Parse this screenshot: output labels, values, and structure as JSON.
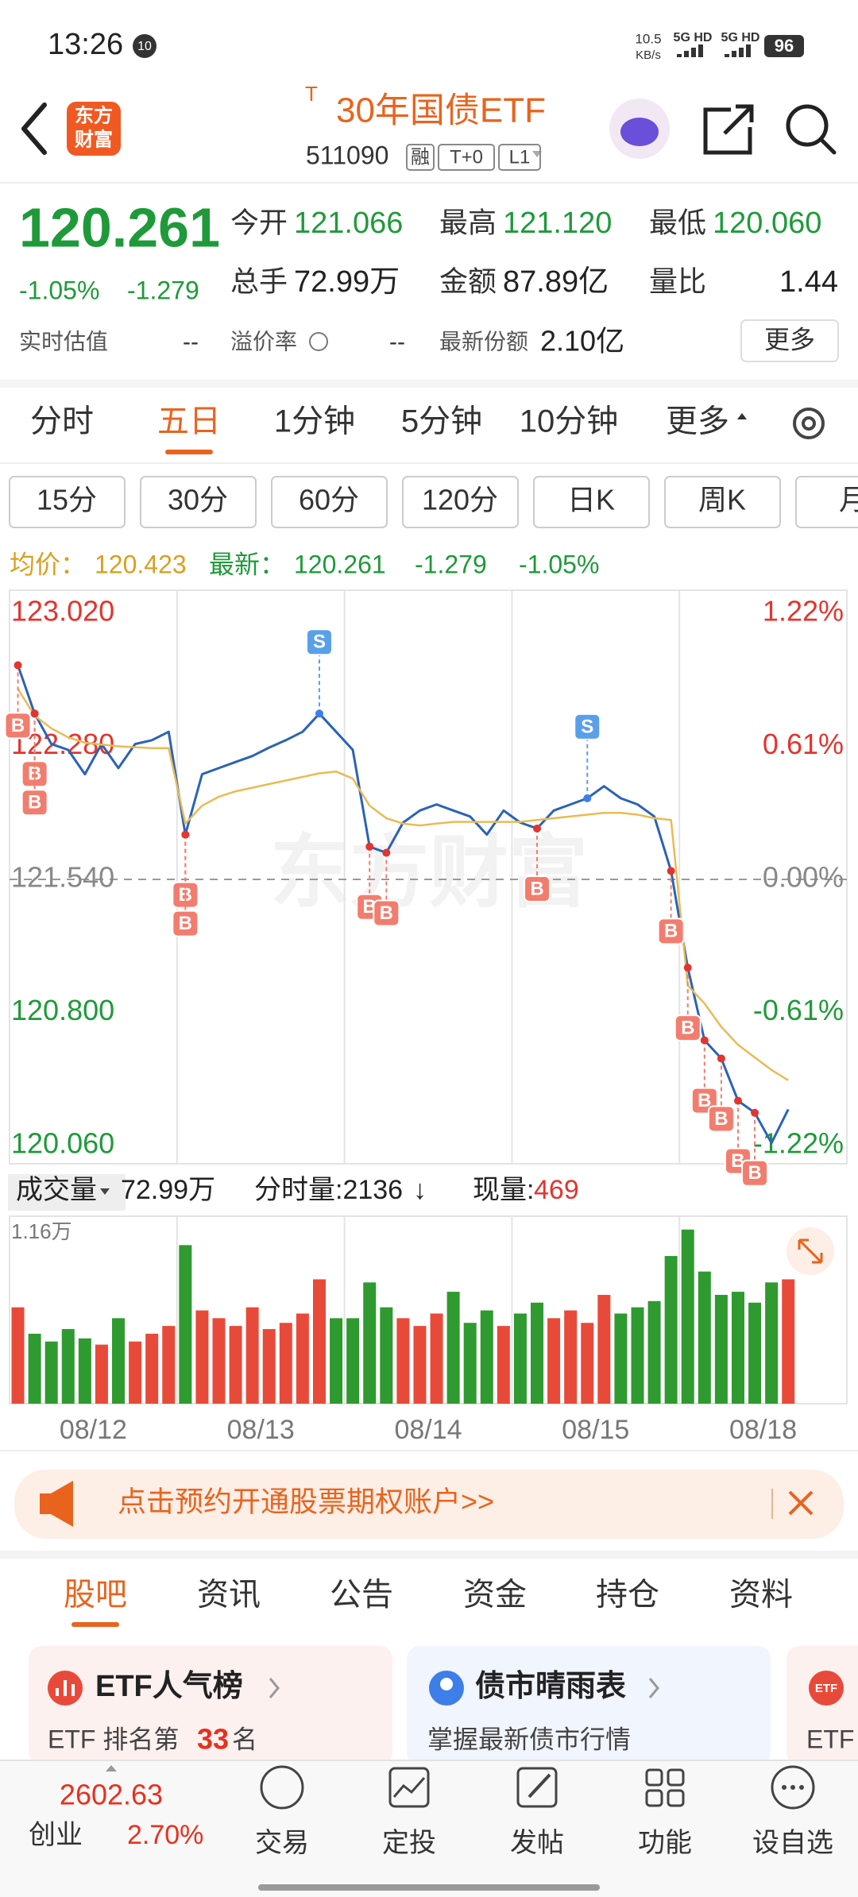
{
  "status_bar": {
    "time": "13:26",
    "badge": "10",
    "net_speed": "10.5",
    "net_unit": "KB/s",
    "signal1": "5G HD",
    "signal2": "5G HD",
    "battery": "96"
  },
  "header": {
    "logo_line1": "东方",
    "logo_line2": "财富",
    "title_mark": "T",
    "title": "30年国债ETF",
    "code": "511090",
    "tags": [
      "融",
      "T+0",
      "L1"
    ]
  },
  "quote": {
    "price": "120.261",
    "change_pct": "-1.05%",
    "change": "-1.279",
    "fields": [
      {
        "label": "今开",
        "value": "121.066"
      },
      {
        "label": "最高",
        "value": "121.120"
      },
      {
        "label": "最低",
        "value": "120.060"
      },
      {
        "label": "总手",
        "value": "72.99万"
      },
      {
        "label": "金额",
        "value": "87.89亿"
      },
      {
        "label": "量比",
        "value": "1.44"
      },
      {
        "label": "实时估值",
        "value": "--"
      },
      {
        "label": "溢价率",
        "value": "--"
      },
      {
        "label": "最新份额",
        "value": "2.10亿"
      }
    ],
    "more": "更多"
  },
  "tabs": {
    "items": [
      "分时",
      "五日",
      "1分钟",
      "5分钟",
      "10分钟",
      "更多"
    ],
    "active": 1
  },
  "periods": [
    "15分",
    "30分",
    "60分",
    "120分",
    "日K",
    "周K",
    "月"
  ],
  "legend": {
    "avg_label": "均价：",
    "avg": "120.423",
    "last_label": "最新：",
    "last": "120.261",
    "change": "-1.279",
    "change_pct": "-1.05%"
  },
  "chart_data": [
    {
      "type": "line",
      "watermark": "东方财富",
      "xlim": [
        0,
        50
      ],
      "ylim": [
        120.06,
        123.02
      ],
      "yticks": [
        {
          "value": 120.06,
          "label": "120.060"
        },
        {
          "value": 120.8,
          "label": "120.800"
        },
        {
          "value": 121.54,
          "label": "121.540"
        },
        {
          "value": 122.28,
          "label": "122.280"
        },
        {
          "value": 123.02,
          "label": "123.020"
        }
      ],
      "y2lim": [
        -1.22,
        1.22
      ],
      "y2ticks": [
        {
          "value": -1.22,
          "label": "-1.22%"
        },
        {
          "value": -0.61,
          "label": "-0.61%"
        },
        {
          "value": 0,
          "label": "0.00%"
        },
        {
          "value": 0.61,
          "label": "0.61%"
        },
        {
          "value": 1.22,
          "label": "1.22%"
        }
      ],
      "series": [
        {
          "color": "#2b63b5",
          "values": [
            122.731,
            122.462,
            122.293,
            122.26,
            122.125,
            122.293,
            122.159,
            122.293,
            122.314,
            122.361,
            121.789,
            122.125,
            122.159,
            122.193,
            122.226,
            122.273,
            122.314,
            122.361,
            122.462,
            122.361,
            122.26,
            121.722,
            121.688,
            121.856,
            121.923,
            121.957,
            121.923,
            121.89,
            121.789,
            121.923,
            121.856,
            121.823,
            121.923,
            121.957,
            121.991,
            122.058,
            121.991,
            121.957,
            121.89,
            121.587,
            121.049,
            120.645,
            120.544,
            120.309,
            120.242,
            120.074,
            120.261,
            null,
            null,
            null
          ]
        },
        {
          "color": "#e9bb55",
          "values": [
            122.6,
            122.45,
            122.38,
            122.33,
            122.3,
            122.29,
            122.28,
            122.275,
            122.27,
            122.27,
            121.85,
            121.95,
            122.0,
            122.03,
            122.05,
            122.07,
            122.09,
            122.11,
            122.13,
            122.14,
            122.1,
            121.95,
            121.88,
            121.85,
            121.84,
            121.85,
            121.86,
            121.86,
            121.86,
            121.86,
            121.86,
            121.87,
            121.88,
            121.89,
            121.9,
            121.91,
            121.91,
            121.9,
            121.88,
            121.87,
            120.95,
            120.85,
            120.72,
            120.62,
            120.55,
            120.48,
            120.423,
            null,
            null,
            null
          ]
        }
      ],
      "markers": [
        {
          "text": "B",
          "index": 0
        },
        {
          "text": "B",
          "index": 1
        },
        {
          "text": "B",
          "index": 1
        },
        {
          "text": "B",
          "index": 10
        },
        {
          "text": "B",
          "index": 10
        },
        {
          "text": "S",
          "index": 18
        },
        {
          "text": "B",
          "index": 21
        },
        {
          "text": "B",
          "index": 22
        },
        {
          "text": "B",
          "index": 31
        },
        {
          "text": "S",
          "index": 34
        },
        {
          "text": "B",
          "index": 39
        },
        {
          "text": "B",
          "index": 40
        },
        {
          "text": "B",
          "index": 41
        },
        {
          "text": "B",
          "index": 42
        },
        {
          "text": "B",
          "index": 43
        },
        {
          "text": "B",
          "index": 44
        }
      ]
    },
    {
      "type": "bar",
      "xlim": [
        0,
        50
      ],
      "xticks": [
        {
          "value": 5,
          "label": "08/12"
        },
        {
          "value": 15,
          "label": "08/13"
        },
        {
          "value": 25,
          "label": "08/14"
        },
        {
          "value": 35,
          "label": "08/15"
        },
        {
          "value": 45,
          "label": "08/18"
        }
      ],
      "ylim": [
        0,
        1.16
      ],
      "yticks": [
        {
          "value": 1.16,
          "label": "1.16万"
        }
      ],
      "values": [
        0.62,
        0.45,
        0.4,
        0.48,
        0.42,
        0.38,
        0.55,
        0.4,
        0.45,
        0.5,
        1.02,
        0.6,
        0.55,
        0.5,
        0.62,
        0.48,
        0.52,
        0.58,
        0.8,
        0.55,
        0.55,
        0.78,
        0.62,
        0.55,
        0.5,
        0.58,
        0.72,
        0.52,
        0.6,
        0.5,
        0.58,
        0.65,
        0.55,
        0.6,
        0.52,
        0.7,
        0.58,
        0.62,
        0.66,
        0.95,
        1.12,
        0.85,
        0.7,
        0.72,
        0.65,
        0.78,
        0.8,
        null,
        null,
        null
      ]
    }
  ],
  "volume_header": {
    "label": "成交量",
    "total": "72.99万",
    "tick_label": "分时量:2136",
    "arrow": "↓",
    "now_label": "现量:",
    "now": "469"
  },
  "banner": "点击预约开通股票期权账户>>",
  "section_tabs": {
    "items": [
      "股吧",
      "资讯",
      "公告",
      "资金",
      "持仓",
      "资料"
    ],
    "active": 0
  },
  "cards": [
    {
      "title": "ETF人气榜",
      "sub_prefix": "ETF 排名第",
      "rank": "33",
      "sub_suffix": "名"
    },
    {
      "title": "债市晴雨表",
      "sub": "掌握最新债市行情"
    },
    {
      "icon": "ETF",
      "sub": "ETF"
    }
  ],
  "bottom_nav": {
    "index_value": "2602.63",
    "index_name": "创业",
    "index_change": "2.70%",
    "items": [
      "交易",
      "定投",
      "发帖",
      "功能",
      "设自选"
    ]
  }
}
